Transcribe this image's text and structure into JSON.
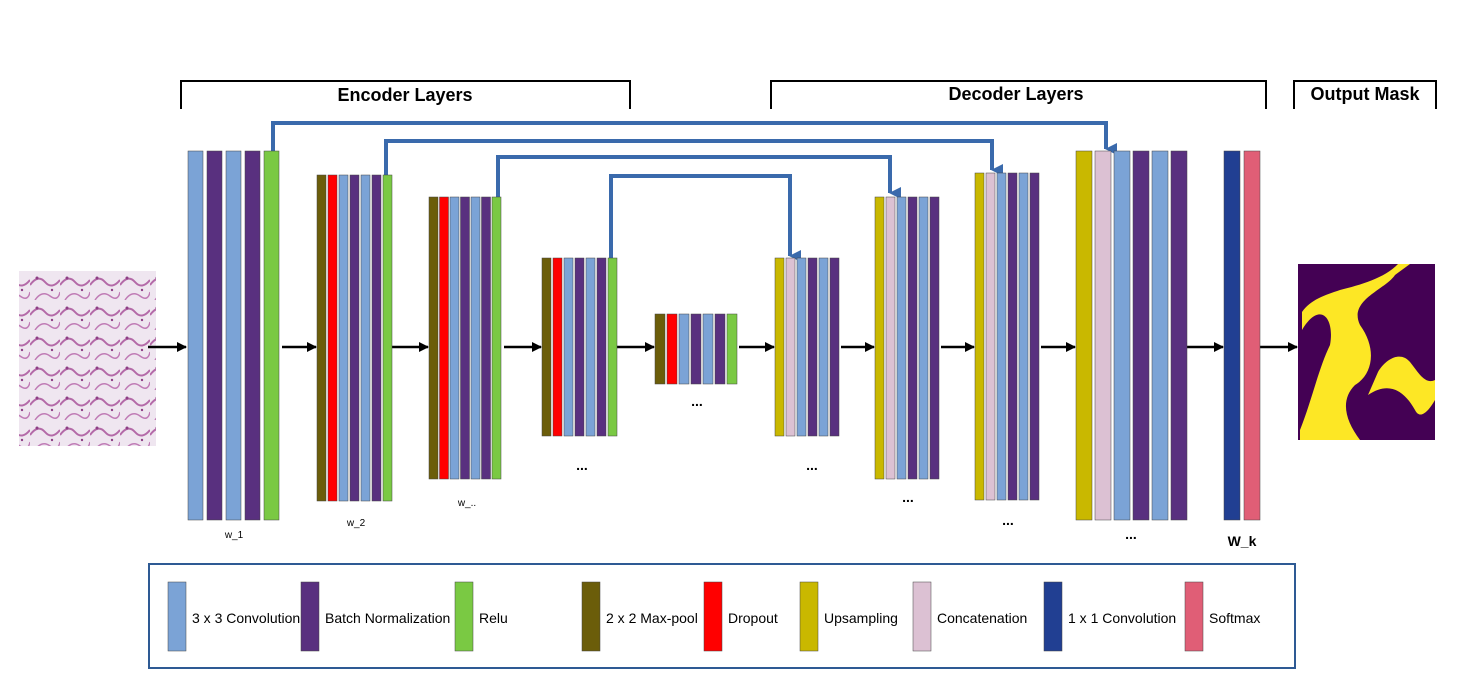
{
  "colors": {
    "conv3": "#7ba3d6",
    "bn": "#59307f",
    "relu": "#7ac943",
    "maxpool": "#6b5d0a",
    "dropout": "#ff0000",
    "upsampling": "#c9b800",
    "concat": "#dcc1d3",
    "conv1": "#213f92",
    "softmax": "#e05e76",
    "skip": "#3a6aac",
    "mask_bg": "#440154",
    "mask_fg": "#fde725",
    "legend_border": "#2e5a94"
  },
  "headers": {
    "encoder": "Encoder Layers",
    "decoder": "Decoder Layers",
    "output": "Output Mask"
  },
  "labels": {
    "w1": "w_1",
    "w2": "w_2",
    "w3": "w_..",
    "enc4": "...",
    "bottleneck": "...",
    "dec1": "...",
    "dec2": "...",
    "dec3": "...",
    "dec4": "...",
    "wk": "W_k"
  },
  "legend": [
    {
      "label": "3 x 3 Convolution",
      "color": "conv3"
    },
    {
      "label": "Batch Normalization",
      "color": "bn"
    },
    {
      "label": "Relu",
      "color": "relu"
    },
    {
      "label": "2 x 2 Max-pool",
      "color": "maxpool"
    },
    {
      "label": "Dropout",
      "color": "dropout"
    },
    {
      "label": "Upsampling",
      "color": "upsampling"
    },
    {
      "label": "Concatenation",
      "color": "concat"
    },
    {
      "label": "1 x 1 Convolution",
      "color": "conv1"
    },
    {
      "label": "Softmax",
      "color": "softmax"
    }
  ],
  "blocks": [
    {
      "id": "enc1",
      "layers": [
        "conv3",
        "bn",
        "conv3",
        "bn",
        "relu"
      ]
    },
    {
      "id": "enc2",
      "layers": [
        "maxpool",
        "dropout",
        "conv3",
        "bn",
        "conv3",
        "bn",
        "relu"
      ]
    },
    {
      "id": "enc3",
      "layers": [
        "maxpool",
        "dropout",
        "conv3",
        "bn",
        "conv3",
        "bn",
        "relu"
      ]
    },
    {
      "id": "enc4",
      "layers": [
        "maxpool",
        "dropout",
        "conv3",
        "bn",
        "conv3",
        "bn",
        "relu"
      ]
    },
    {
      "id": "bottleneck",
      "layers": [
        "maxpool",
        "dropout",
        "conv3",
        "bn",
        "conv3",
        "bn",
        "relu"
      ]
    },
    {
      "id": "dec1",
      "layers": [
        "upsampling",
        "concat",
        "conv3",
        "bn",
        "conv3",
        "bn"
      ]
    },
    {
      "id": "dec2",
      "layers": [
        "upsampling",
        "concat",
        "conv3",
        "bn",
        "conv3",
        "bn"
      ]
    },
    {
      "id": "dec3",
      "layers": [
        "upsampling",
        "concat",
        "conv3",
        "bn",
        "conv3",
        "bn"
      ]
    },
    {
      "id": "dec4",
      "layers": [
        "upsampling",
        "concat",
        "conv3",
        "bn",
        "conv3",
        "bn"
      ]
    },
    {
      "id": "final",
      "layers": [
        "conv1",
        "softmax"
      ]
    }
  ]
}
